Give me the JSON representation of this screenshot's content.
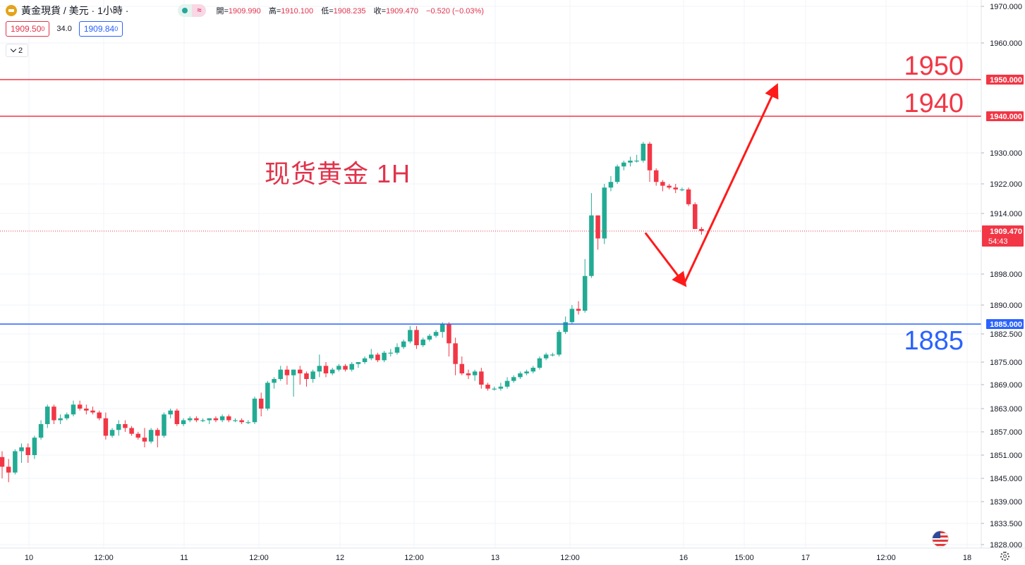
{
  "header": {
    "title": "黃金現貨 / 美元 · 1小時 ·",
    "ohlc": [
      {
        "label": "開=",
        "value": "1909.990"
      },
      {
        "label": "高=",
        "value": "1910.100"
      },
      {
        "label": "低=",
        "value": "1908.235"
      },
      {
        "label": "收=",
        "value": "1909.470"
      }
    ],
    "change": "−0.520 (−0.03%)"
  },
  "trade": {
    "sell": "1909.50",
    "sell_sup": "0",
    "spread": "34.0",
    "buy": "1909.84",
    "buy_sup": "0"
  },
  "indicators_toggle": {
    "count": "2"
  },
  "colors": {
    "up": "#22ab94",
    "down": "#f23645",
    "resistance": "#f23645",
    "support": "#2962ff",
    "arrow": "#ff1a1a"
  },
  "chart_data": {
    "type": "candlestick",
    "title": "现货黄金 1H",
    "timeframe": "1H",
    "ylim": [
      1826,
      1973
    ],
    "price_axis_labels": [
      "1970.000",
      "1960.000",
      "1930.000",
      "1922.000",
      "1914.000",
      "1898.000",
      "1890.000",
      "1882.500",
      "1875.000",
      "1869.000",
      "1863.000",
      "1857.000",
      "1851.000",
      "1845.000",
      "1839.000",
      "1833.500",
      "1828.000"
    ],
    "time_axis_labels": [
      "10",
      "12:00",
      "11",
      "12:00",
      "12",
      "12:00",
      "13",
      "12:00",
      "16",
      "15:00",
      "17",
      "12:00",
      "18"
    ],
    "current_price": {
      "value": "1909.470",
      "countdown": "54:43",
      "price": 1909.47
    },
    "levels": [
      {
        "label": "1950",
        "tag": "1950.000",
        "price": 1950,
        "kind": "resistance"
      },
      {
        "label": "1940",
        "tag": "1940.000",
        "price": 1940,
        "kind": "resistance"
      },
      {
        "label": "1885",
        "tag": "1885.000",
        "price": 1885,
        "kind": "support"
      }
    ],
    "forecast_path": [
      {
        "bar": 99,
        "price": 1909
      },
      {
        "bar": 104,
        "price": 1895.5
      },
      {
        "bar": 118,
        "price": 1948
      }
    ],
    "candles": [
      [
        1850.5,
        1852,
        1845,
        1848
      ],
      [
        1848,
        1850,
        1844,
        1846.5
      ],
      [
        1846.5,
        1852.5,
        1846,
        1852
      ],
      [
        1852,
        1854,
        1849,
        1853
      ],
      [
        1853,
        1854,
        1849,
        1851
      ],
      [
        1851,
        1856,
        1850,
        1855.5
      ],
      [
        1855.5,
        1860,
        1855,
        1859
      ],
      [
        1859,
        1864,
        1858,
        1863.5
      ],
      [
        1863.5,
        1864,
        1859,
        1860
      ],
      [
        1860,
        1861.5,
        1859,
        1860.5
      ],
      [
        1860.5,
        1862,
        1860,
        1861.5
      ],
      [
        1861.5,
        1865,
        1861,
        1864
      ],
      [
        1864,
        1865,
        1862.5,
        1863
      ],
      [
        1863,
        1864,
        1861.5,
        1862.5
      ],
      [
        1862.5,
        1863.5,
        1861.5,
        1862
      ],
      [
        1862,
        1862.5,
        1860,
        1860.5
      ],
      [
        1860.5,
        1862,
        1855,
        1856
      ],
      [
        1856,
        1858,
        1855.5,
        1857.5
      ],
      [
        1857.5,
        1860,
        1856,
        1859
      ],
      [
        1859,
        1860,
        1857,
        1858
      ],
      [
        1858,
        1858.5,
        1856,
        1856.5
      ],
      [
        1856.5,
        1857,
        1855,
        1855.5
      ],
      [
        1855.5,
        1858,
        1853,
        1854.5
      ],
      [
        1854.5,
        1858,
        1854,
        1857.5
      ],
      [
        1857.5,
        1858,
        1853,
        1856
      ],
      [
        1856,
        1862,
        1855.5,
        1861.5
      ],
      [
        1861.5,
        1863,
        1860.5,
        1862.5
      ],
      [
        1862.5,
        1863,
        1858.5,
        1859
      ],
      [
        1859,
        1860.5,
        1858.5,
        1860
      ],
      [
        1860,
        1861,
        1859.5,
        1860.5
      ],
      [
        1860.5,
        1861,
        1859.5,
        1860
      ],
      [
        1860,
        1860.5,
        1859.5,
        1860
      ],
      [
        1860,
        1860.5,
        1859,
        1860.5
      ],
      [
        1860.5,
        1861,
        1859.5,
        1860
      ],
      [
        1860,
        1861.5,
        1859.5,
        1861
      ],
      [
        1861,
        1861.5,
        1859.5,
        1860
      ],
      [
        1860,
        1860.5,
        1859.5,
        1860
      ],
      [
        1860,
        1860.5,
        1859,
        1859.5
      ],
      [
        1859.5,
        1860,
        1859,
        1859.5
      ],
      [
        1859.5,
        1866,
        1859,
        1865.5
      ],
      [
        1865.5,
        1867,
        1861,
        1863
      ],
      [
        1863,
        1870,
        1862.5,
        1869.5
      ],
      [
        1869.5,
        1871,
        1868,
        1870.5
      ],
      [
        1870.5,
        1874,
        1870,
        1873
      ],
      [
        1873,
        1874,
        1869,
        1871.5
      ],
      [
        1871.5,
        1873,
        1866,
        1873
      ],
      [
        1873,
        1874,
        1869,
        1872
      ],
      [
        1872,
        1872.5,
        1868.5,
        1870.5
      ],
      [
        1870.5,
        1873,
        1869.5,
        1872.5
      ],
      [
        1872.5,
        1877,
        1871,
        1874
      ],
      [
        1874,
        1875,
        1871,
        1872
      ],
      [
        1872,
        1873.5,
        1871.5,
        1873
      ],
      [
        1873,
        1874.5,
        1872.5,
        1874
      ],
      [
        1874,
        1874.5,
        1872.5,
        1873
      ],
      [
        1873,
        1875,
        1872.5,
        1874.5
      ],
      [
        1874.5,
        1875,
        1873.5,
        1875
      ],
      [
        1875,
        1876.5,
        1874.5,
        1876
      ],
      [
        1876,
        1878.5,
        1875.5,
        1877
      ],
      [
        1877,
        1877.5,
        1875,
        1875.5
      ],
      [
        1875.5,
        1878,
        1875,
        1877.5
      ],
      [
        1877.5,
        1878.5,
        1876.5,
        1877.5
      ],
      [
        1877.5,
        1880,
        1877,
        1879
      ],
      [
        1879,
        1881,
        1878.5,
        1880.5
      ],
      [
        1880.5,
        1884.5,
        1880,
        1883.5
      ],
      [
        1883.5,
        1884.5,
        1878.5,
        1879.5
      ],
      [
        1879.5,
        1881.5,
        1879,
        1881
      ],
      [
        1881,
        1882.5,
        1880.5,
        1882
      ],
      [
        1882,
        1883.5,
        1881.5,
        1883
      ],
      [
        1883,
        1885.5,
        1881.5,
        1885
      ],
      [
        1885,
        1885.5,
        1876.5,
        1880
      ],
      [
        1880,
        1881.5,
        1871.5,
        1874.5
      ],
      [
        1874.5,
        1876.5,
        1871.5,
        1872
      ],
      [
        1872,
        1873,
        1870.5,
        1871.5
      ],
      [
        1871.5,
        1873,
        1870,
        1872.5
      ],
      [
        1872.5,
        1873.5,
        1868,
        1869
      ],
      [
        1869,
        1869.5,
        1867.5,
        1868
      ],
      [
        1868,
        1868.5,
        1867.5,
        1868
      ],
      [
        1868,
        1869.5,
        1867.5,
        1868.5
      ],
      [
        1868.5,
        1871,
        1868,
        1870
      ],
      [
        1870,
        1871.5,
        1869.5,
        1871
      ],
      [
        1871,
        1872.5,
        1870.5,
        1872
      ],
      [
        1872,
        1873,
        1871.5,
        1872.5
      ],
      [
        1872.5,
        1874,
        1872,
        1873.5
      ],
      [
        1873.5,
        1876.5,
        1873,
        1876
      ],
      [
        1876,
        1877.5,
        1875.5,
        1877
      ],
      [
        1877,
        1877.5,
        1876.5,
        1877
      ],
      [
        1877,
        1883.5,
        1876.5,
        1883
      ],
      [
        1883,
        1887,
        1882.5,
        1885.5
      ],
      [
        1885.5,
        1890,
        1885,
        1889
      ],
      [
        1889,
        1891,
        1887.5,
        1888.5
      ],
      [
        1888.5,
        1902,
        1888,
        1897.5
      ],
      [
        1897.5,
        1919.5,
        1897,
        1913.5
      ],
      [
        1913.5,
        1913.5,
        1904.5,
        1907.5
      ],
      [
        1907.5,
        1922,
        1906,
        1921
      ],
      [
        1921,
        1924,
        1920,
        1922.5
      ],
      [
        1922.5,
        1927,
        1922,
        1926.5
      ],
      [
        1926.5,
        1928,
        1925.5,
        1927.5
      ],
      [
        1927.5,
        1929,
        1926.5,
        1928
      ],
      [
        1928,
        1929.5,
        1927.5,
        1928
      ],
      [
        1928,
        1933,
        1927.5,
        1932.5
      ],
      [
        1932.5,
        1933,
        1922.5,
        1925.5
      ],
      [
        1925.5,
        1926,
        1921.5,
        1922.5
      ],
      [
        1922.5,
        1923,
        1920,
        1921.5
      ],
      [
        1921.5,
        1922,
        1920.5,
        1921
      ],
      [
        1921,
        1922,
        1919.5,
        1920.5
      ],
      [
        1920.5,
        1921,
        1920,
        1920.5
      ],
      [
        1920.5,
        1921,
        1916,
        1916.5
      ],
      [
        1916.5,
        1917,
        1910,
        1910
      ],
      [
        1910,
        1910.5,
        1908.5,
        1909.5
      ]
    ]
  }
}
